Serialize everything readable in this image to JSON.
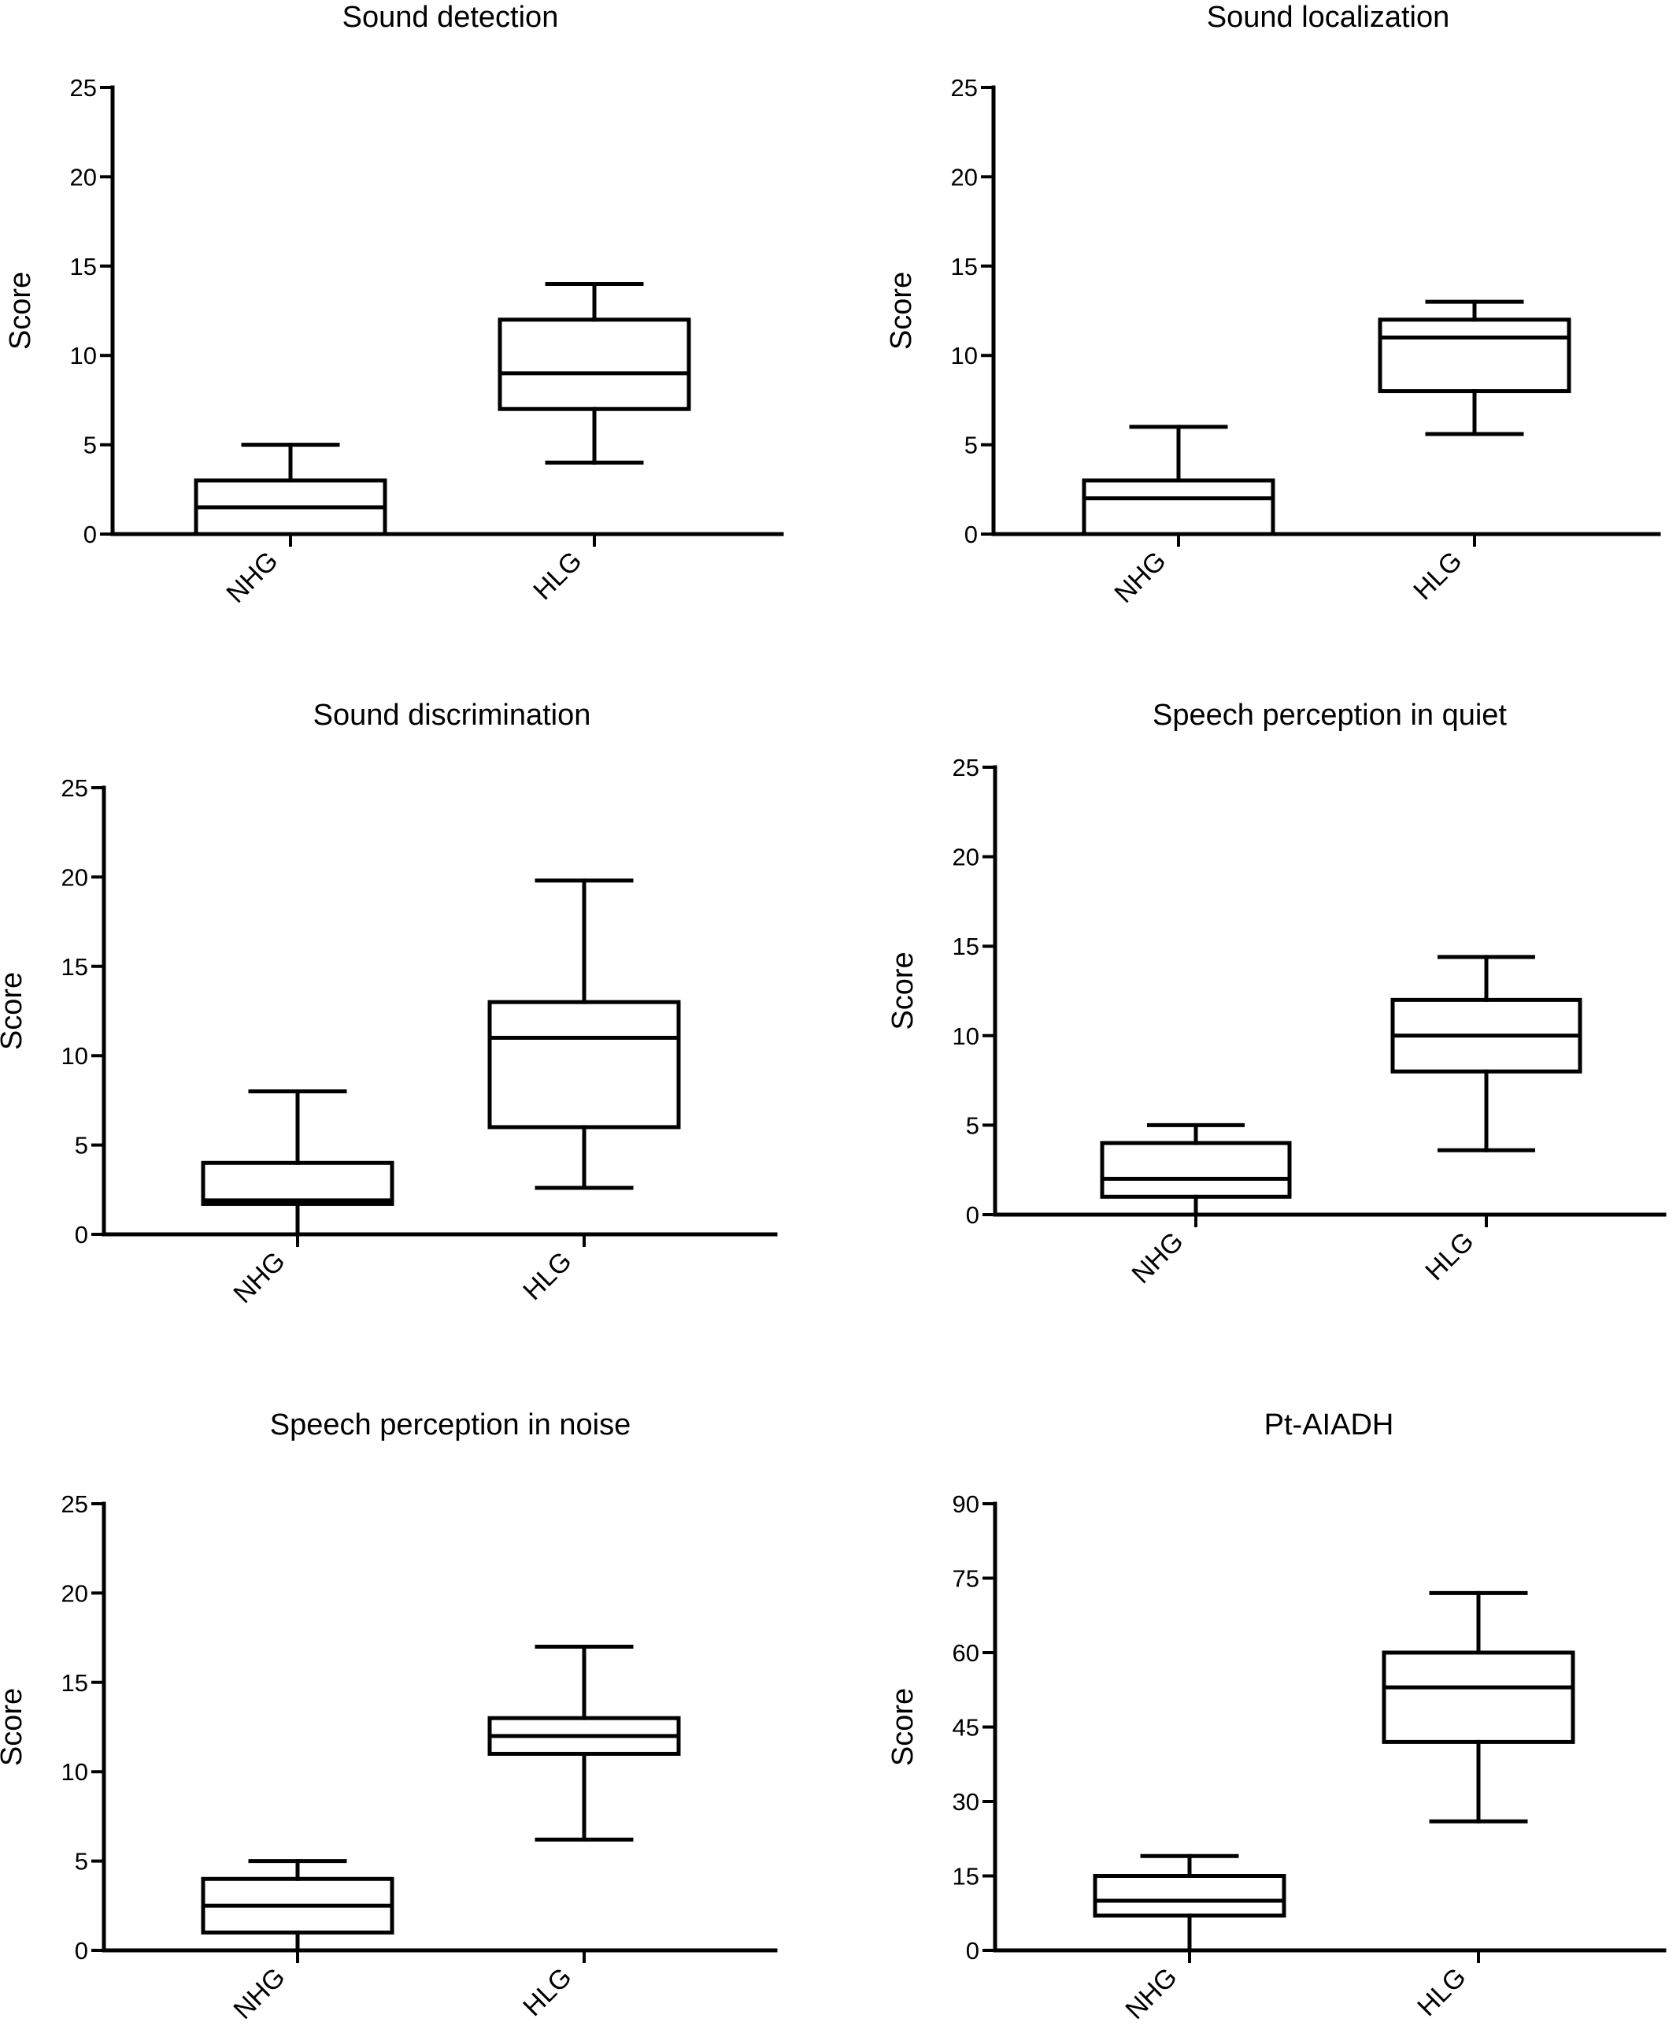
{
  "figure": {
    "background": "#ffffff",
    "stroke_color": "#000000"
  },
  "chart_data": [
    {
      "type": "box",
      "title": "Sound detection",
      "ylabel": "Score",
      "xlabel": "",
      "ylim": [
        0,
        25
      ],
      "yticks": [
        0,
        5,
        10,
        15,
        20,
        25
      ],
      "categories": [
        "NHG",
        "HLG"
      ],
      "boxes": [
        {
          "category": "NHG",
          "min": 0,
          "q1": 0,
          "median": 1.5,
          "q3": 3,
          "max": 5
        },
        {
          "category": "HLG",
          "min": 4,
          "q1": 7,
          "median": 9,
          "q3": 12,
          "max": 14
        }
      ],
      "grid": false
    },
    {
      "type": "box",
      "title": "Sound localization",
      "ylabel": "Score",
      "xlabel": "",
      "ylim": [
        0,
        25
      ],
      "yticks": [
        0,
        5,
        10,
        15,
        20,
        25
      ],
      "categories": [
        "NHG",
        "HLG"
      ],
      "boxes": [
        {
          "category": "NHG",
          "min": 0,
          "q1": 0,
          "median": 2,
          "q3": 3,
          "max": 6
        },
        {
          "category": "HLG",
          "min": 5.6,
          "q1": 8,
          "median": 11,
          "q3": 12,
          "max": 13
        }
      ],
      "grid": false
    },
    {
      "type": "box",
      "title": "Sound discrimination",
      "ylabel": "Score",
      "xlabel": "",
      "ylim": [
        0,
        25
      ],
      "yticks": [
        0,
        5,
        10,
        15,
        20,
        25
      ],
      "categories": [
        "NHG",
        "HLG"
      ],
      "boxes": [
        {
          "category": "NHG",
          "min": 0,
          "q1": 1.7,
          "median": 1.9,
          "q3": 4,
          "max": 8
        },
        {
          "category": "HLG",
          "min": 2.6,
          "q1": 6,
          "median": 11,
          "q3": 13,
          "max": 19.8
        }
      ],
      "grid": false
    },
    {
      "type": "box",
      "title": "Speech perception in quiet",
      "ylabel": "Score",
      "xlabel": "",
      "ylim": [
        0,
        25
      ],
      "yticks": [
        0,
        5,
        10,
        15,
        20,
        25
      ],
      "categories": [
        "NHG",
        "HLG"
      ],
      "boxes": [
        {
          "category": "NHG",
          "min": 0,
          "q1": 1,
          "median": 2,
          "q3": 4,
          "max": 5
        },
        {
          "category": "HLG",
          "min": 3.6,
          "q1": 8,
          "median": 10,
          "q3": 12,
          "max": 14.4
        }
      ],
      "grid": false
    },
    {
      "type": "box",
      "title": "Speech perception in noise",
      "ylabel": "Score",
      "xlabel": "",
      "ylim": [
        0,
        25
      ],
      "yticks": [
        0,
        5,
        10,
        15,
        20,
        25
      ],
      "categories": [
        "NHG",
        "HLG"
      ],
      "boxes": [
        {
          "category": "NHG",
          "min": 0,
          "q1": 1,
          "median": 2.5,
          "q3": 4,
          "max": 5
        },
        {
          "category": "HLG",
          "min": 6.2,
          "q1": 11,
          "median": 12,
          "q3": 13,
          "max": 17
        }
      ],
      "grid": false
    },
    {
      "type": "box",
      "title": "Pt-AIADH",
      "ylabel": "Score",
      "xlabel": "",
      "ylim": [
        0,
        90
      ],
      "yticks": [
        0,
        15,
        30,
        45,
        60,
        75,
        90
      ],
      "categories": [
        "NHG",
        "HLG"
      ],
      "boxes": [
        {
          "category": "NHG",
          "min": 0,
          "q1": 7,
          "median": 10,
          "q3": 15,
          "max": 19
        },
        {
          "category": "HLG",
          "min": 26,
          "q1": 42,
          "median": 53,
          "q3": 60,
          "max": 72
        }
      ],
      "grid": false
    }
  ]
}
